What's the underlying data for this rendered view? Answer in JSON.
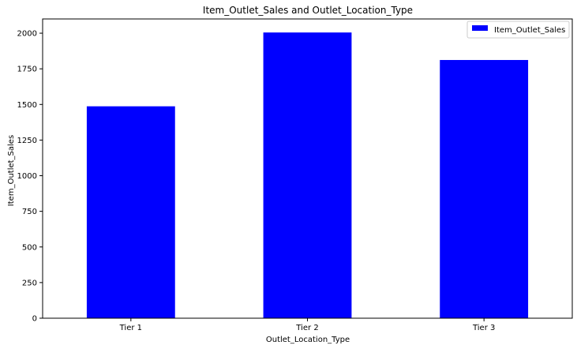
{
  "chart_data": {
    "type": "bar",
    "title": "Item_Outlet_Sales and Outlet_Location_Type",
    "xlabel": "Outlet_Location_Type",
    "ylabel": "Item_Outlet_Sales",
    "categories": [
      "Tier 1",
      "Tier 2",
      "Tier 3"
    ],
    "series": [
      {
        "name": "Item_Outlet_Sales",
        "values": [
          1487,
          2005,
          1812
        ],
        "color": "#0000ff"
      }
    ],
    "ylim": [
      0,
      2100
    ],
    "yticks": [
      0,
      250,
      500,
      750,
      1000,
      1250,
      1500,
      1750,
      2000
    ],
    "grid": false,
    "legend": "top-right"
  }
}
